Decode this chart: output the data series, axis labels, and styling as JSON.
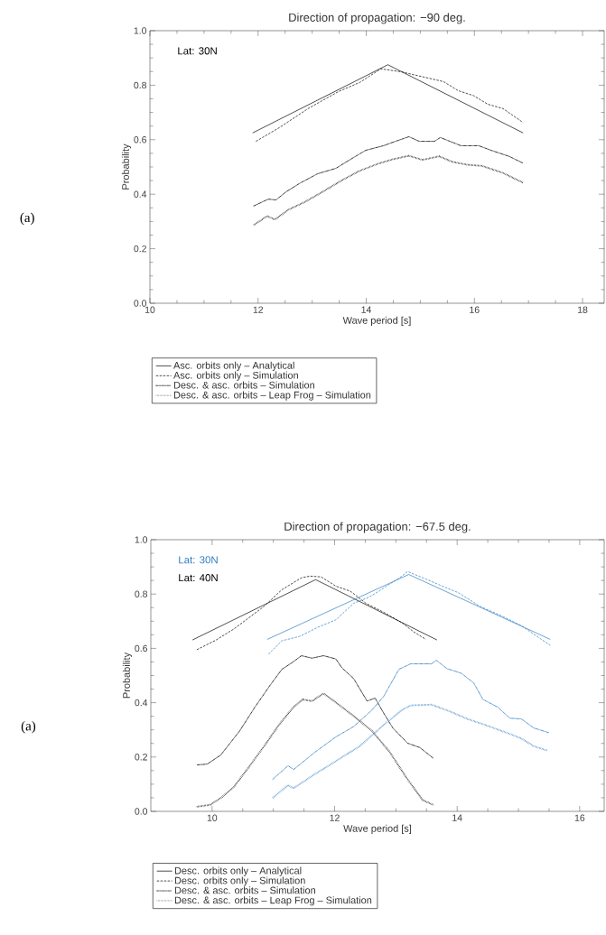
{
  "chart_data": [
    {
      "type": "line",
      "title": "Direction of propagation: −90 deg.",
      "xlabel": "Wave period [s]",
      "ylabel": "Probability",
      "xlim": [
        10,
        18.4
      ],
      "ylim": [
        0,
        1
      ],
      "xticks": [
        10,
        12,
        14,
        16,
        18
      ],
      "yticks": [
        {
          "value": 0,
          "label": "0.0"
        },
        {
          "value": 0.2,
          "label": "0.2"
        },
        {
          "value": 0.4,
          "label": "0.4"
        },
        {
          "value": 0.6,
          "label": "0.6"
        },
        {
          "value": 0.8,
          "label": "0.8"
        },
        {
          "value": 1,
          "label": "1.0"
        }
      ],
      "legend": "bottom",
      "annotations": [
        "(a)",
        "Lat: 30N"
      ],
      "series": [
        {
          "name": "Asc. orbits only – Analytical",
          "color": "#000000",
          "line_style": "solid",
          "x": [
            11.9,
            14.4,
            16.9
          ],
          "values": [
            0.625,
            0.875,
            0.625
          ]
        },
        {
          "name": "Asc. orbits only – Simulation",
          "color": "#000000",
          "line_style": "dashed",
          "x": [
            11.96,
            12.39,
            12.94,
            13.49,
            13.88,
            14.27,
            14.65,
            15.43,
            15.7,
            15.98,
            16.25,
            16.53,
            16.9
          ],
          "values": [
            0.594,
            0.644,
            0.716,
            0.777,
            0.81,
            0.86,
            0.849,
            0.813,
            0.78,
            0.762,
            0.73,
            0.714,
            0.663
          ]
        },
        {
          "name": "Desc. & asc. orbits – Simulation",
          "color": "#000000",
          "line_style": "dashdotted",
          "x": [
            11.92,
            12.19,
            12.33,
            12.52,
            12.77,
            13.1,
            13.44,
            13.71,
            13.99,
            14.32,
            14.54,
            14.79,
            14.98,
            15.26,
            15.37,
            15.75,
            16.08,
            16.31,
            16.64,
            16.89
          ],
          "values": [
            0.357,
            0.382,
            0.379,
            0.409,
            0.44,
            0.475,
            0.495,
            0.528,
            0.561,
            0.578,
            0.594,
            0.611,
            0.594,
            0.594,
            0.608,
            0.578,
            0.578,
            0.561,
            0.539,
            0.515
          ]
        },
        {
          "name": "Desc. & asc. orbits – Leap Frog – Simulation",
          "color": "#000000",
          "line_style": "dotted",
          "x": [
            11.92,
            12.17,
            12.31,
            12.56,
            12.88,
            13.22,
            13.55,
            13.88,
            14.22,
            14.49,
            14.79,
            15.04,
            15.35,
            15.59,
            15.87,
            16.14,
            16.53,
            16.9
          ],
          "values": [
            0.287,
            0.32,
            0.307,
            0.343,
            0.373,
            0.412,
            0.451,
            0.486,
            0.512,
            0.528,
            0.541,
            0.526,
            0.539,
            0.519,
            0.508,
            0.504,
            0.478,
            0.442
          ]
        }
      ]
    },
    {
      "type": "line",
      "title": "Direction of propagation: −67.5 deg.",
      "xlabel": "Wave period [s]",
      "ylabel": "Probability",
      "xlim": [
        9,
        16.4
      ],
      "ylim": [
        0,
        1
      ],
      "xticks": [
        10,
        12,
        14,
        16
      ],
      "yticks": [
        {
          "value": 0,
          "label": "0.0"
        },
        {
          "value": 0.2,
          "label": "0.2"
        },
        {
          "value": 0.4,
          "label": "0.4"
        },
        {
          "value": 0.6,
          "label": "0.6"
        },
        {
          "value": 0.8,
          "label": "0.8"
        },
        {
          "value": 1,
          "label": "1.0"
        }
      ],
      "legend": "bottom",
      "annotations": [
        "(a)",
        "Lat: 30N",
        "Lat: 40N"
      ],
      "series": [
        {
          "name": "Desc. orbits only – Analytical",
          "color": "#000000",
          "line_style": "solid",
          "x": [
            9.68,
            11.69,
            13.67
          ],
          "values": [
            0.631,
            0.853,
            0.631
          ]
        },
        {
          "name": "Desc. orbits only – Simulation",
          "color": "#000000",
          "line_style": "dashed",
          "x": [
            9.75,
            10.06,
            10.36,
            10.85,
            11.14,
            11.46,
            11.6,
            11.78,
            12.02,
            12.26,
            12.51,
            12.8,
            13.1,
            13.29,
            13.49
          ],
          "values": [
            0.595,
            0.63,
            0.672,
            0.755,
            0.816,
            0.86,
            0.866,
            0.863,
            0.829,
            0.81,
            0.766,
            0.733,
            0.694,
            0.661,
            0.633
          ]
        },
        {
          "name": "Desc. & asc. orbits – Simulation",
          "color": "#000000",
          "line_style": "dashdotted",
          "x": [
            9.76,
            9.92,
            10.14,
            10.45,
            10.7,
            10.94,
            11.14,
            11.29,
            11.46,
            11.63,
            11.82,
            12.02,
            12.12,
            12.31,
            12.53,
            12.66,
            12.8,
            12.95,
            13.19,
            13.39,
            13.62
          ],
          "values": [
            0.171,
            0.174,
            0.207,
            0.296,
            0.384,
            0.462,
            0.523,
            0.545,
            0.573,
            0.564,
            0.573,
            0.561,
            0.528,
            0.489,
            0.406,
            0.417,
            0.362,
            0.307,
            0.251,
            0.235,
            0.194
          ]
        },
        {
          "name": "Desc. & asc. orbits – Leap Frog – Simulation",
          "color": "#000000",
          "line_style": "dotted",
          "x": [
            9.75,
            9.97,
            10.16,
            10.36,
            10.6,
            10.85,
            11.09,
            11.33,
            11.48,
            11.63,
            11.82,
            12.02,
            12.31,
            12.61,
            12.9,
            13.19,
            13.44,
            13.61
          ],
          "values": [
            0.017,
            0.024,
            0.052,
            0.091,
            0.163,
            0.24,
            0.318,
            0.384,
            0.412,
            0.406,
            0.434,
            0.401,
            0.351,
            0.296,
            0.218,
            0.118,
            0.041,
            0.024
          ]
        },
        {
          "color": "#2b7bc0",
          "line_style": "solid",
          "x": [
            10.9,
            13.21,
            15.52
          ],
          "values": [
            0.633,
            0.872,
            0.633
          ]
        },
        {
          "color": "#2b7bc0",
          "line_style": "dashed",
          "x": [
            10.92,
            11.14,
            11.43,
            11.73,
            12.02,
            12.31,
            12.56,
            12.8,
            13.1,
            13.19,
            13.49,
            13.78,
            14.02,
            14.37,
            14.76,
            15.05,
            15.52
          ],
          "values": [
            0.578,
            0.628,
            0.644,
            0.678,
            0.705,
            0.766,
            0.788,
            0.822,
            0.866,
            0.883,
            0.855,
            0.827,
            0.805,
            0.755,
            0.716,
            0.683,
            0.611
          ]
        },
        {
          "color": "#2b7bc0",
          "line_style": "dashdotted",
          "x": [
            10.99,
            11.24,
            11.33,
            11.68,
            12.02,
            12.31,
            12.61,
            12.8,
            13.05,
            13.24,
            13.58,
            13.66,
            13.83,
            14.07,
            14.27,
            14.42,
            14.66,
            14.86,
            15.05,
            15.25,
            15.49
          ],
          "values": [
            0.118,
            0.168,
            0.154,
            0.218,
            0.274,
            0.312,
            0.373,
            0.423,
            0.523,
            0.543,
            0.543,
            0.556,
            0.526,
            0.508,
            0.473,
            0.412,
            0.384,
            0.343,
            0.34,
            0.307,
            0.29
          ]
        },
        {
          "color": "#2b7bc0",
          "line_style": "dotted",
          "x": [
            10.99,
            11.24,
            11.33,
            11.63,
            12.02,
            12.41,
            12.8,
            13.1,
            13.24,
            13.58,
            13.88,
            14.17,
            14.46,
            14.86,
            15.05,
            15.25,
            15.47
          ],
          "values": [
            0.05,
            0.096,
            0.085,
            0.13,
            0.185,
            0.24,
            0.318,
            0.373,
            0.39,
            0.393,
            0.368,
            0.34,
            0.318,
            0.285,
            0.268,
            0.24,
            0.224
          ]
        }
      ]
    }
  ]
}
